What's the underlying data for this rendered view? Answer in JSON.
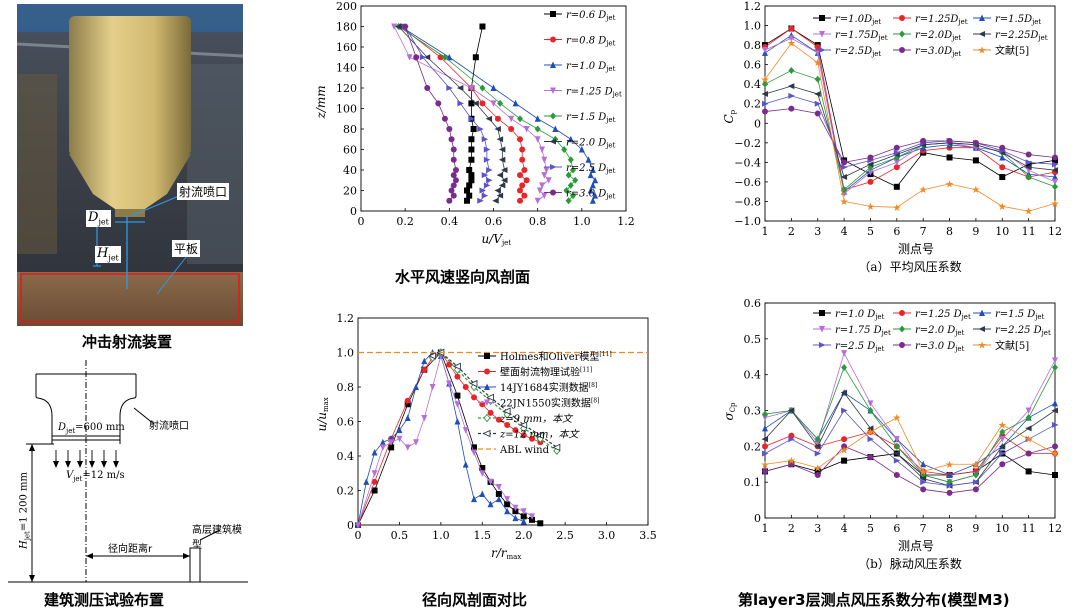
{
  "captions": {
    "photo": "冲击射流装置",
    "schematic": "建筑测压试验布置",
    "profile": "水平风速竖向风剖面",
    "radial": "径向风剖面对比",
    "pressure": "第layer3层测点风压系数分布(模型M3)"
  },
  "photo": {
    "labels": {
      "nozzle": "射流喷口",
      "djet": "D",
      "djet_sub": "jet",
      "hjet": "H",
      "hjet_sub": "jet",
      "plate": "平板"
    }
  },
  "schematic": {
    "djet": "D",
    "djet_sub": "jet",
    "djet_val": "=600 mm",
    "nozzle": "射流喷口",
    "vjet": "V",
    "vjet_sub": "jet",
    "vjet_val": "=12 m/s",
    "hjet": "H",
    "hjet_sub": "jet",
    "hjet_val": "=1 200 mm",
    "radial": "径向距离r",
    "model": "高层建筑模型"
  },
  "colors": {
    "c1": "#000000",
    "c2": "#e8262a",
    "c3": "#1f4fb8",
    "c4": "#b66fd8",
    "c5": "#2a9a3c",
    "c6": "#303848",
    "c7": "#5c54c8",
    "c8": "#7a2c8c",
    "c9": "#f08a24"
  },
  "chart_data": [
    {
      "id": "profile",
      "type": "line",
      "xlabel": "u/V",
      "xlabel_sub": "jet",
      "ylabel": "z/mm",
      "xlim": [
        0,
        1.2
      ],
      "ylim": [
        0,
        200
      ],
      "xticks": [
        "0",
        "0.2",
        "0.4",
        "0.6",
        "0.8",
        "1.0",
        "1.2"
      ],
      "yticks": [
        "0",
        "20",
        "40",
        "60",
        "80",
        "100",
        "120",
        "140",
        "160",
        "180",
        "200"
      ],
      "legend": "top-right",
      "z": [
        180,
        150,
        120,
        105,
        90,
        80,
        70,
        60,
        50,
        40,
        35,
        30,
        25,
        20,
        15,
        10
      ],
      "series": [
        {
          "name": "r=0.6 D",
          "sub": "jet",
          "color": "c1",
          "marker": "square",
          "values": [
            0.55,
            0.52,
            0.5,
            0.5,
            0.5,
            0.51,
            0.5,
            0.5,
            0.5,
            0.49,
            0.5,
            0.5,
            0.49,
            0.48,
            0.49,
            0.48
          ]
        },
        {
          "name": "r=0.8 D",
          "sub": "jet",
          "color": "c2",
          "marker": "circle",
          "values": [
            0.18,
            0.36,
            0.5,
            0.55,
            0.62,
            0.68,
            0.72,
            0.73,
            0.73,
            0.74,
            0.72,
            0.75,
            0.73,
            0.72,
            0.74,
            0.72
          ]
        },
        {
          "name": "r=1.0 D",
          "sub": "jet",
          "color": "c3",
          "marker": "triangle",
          "values": [
            0.18,
            0.4,
            0.6,
            0.7,
            0.8,
            0.88,
            0.95,
            1.0,
            1.03,
            1.05,
            1.04,
            1.06,
            1.05,
            1.04,
            1.06,
            1.05
          ]
        },
        {
          "name": "r=1.25 D",
          "sub": "jet",
          "color": "c4",
          "marker": "triangle-down",
          "values": [
            0.15,
            0.22,
            0.5,
            0.6,
            0.68,
            0.75,
            0.8,
            0.82,
            0.83,
            0.84,
            0.83,
            0.85,
            0.82,
            0.81,
            0.83,
            0.8
          ]
        },
        {
          "name": "r=1.5 D",
          "sub": "jet",
          "color": "c5",
          "marker": "diamond",
          "values": [
            0.17,
            0.38,
            0.55,
            0.63,
            0.72,
            0.8,
            0.88,
            0.92,
            0.95,
            0.96,
            0.94,
            0.97,
            0.95,
            0.93,
            0.96,
            0.94
          ]
        },
        {
          "name": "r=2.0 D",
          "sub": "jet",
          "color": "c6",
          "marker": "triangle-left",
          "values": [
            0.17,
            0.3,
            0.45,
            0.52,
            0.58,
            0.62,
            0.63,
            0.64,
            0.64,
            0.65,
            0.63,
            0.65,
            0.64,
            0.62,
            0.63,
            0.61
          ]
        },
        {
          "name": "r=2.5 D",
          "sub": "jet",
          "color": "c7",
          "marker": "triangle-right",
          "values": [
            0.2,
            0.28,
            0.4,
            0.45,
            0.5,
            0.54,
            0.56,
            0.57,
            0.57,
            0.58,
            0.56,
            0.58,
            0.57,
            0.55,
            0.56,
            0.54
          ]
        },
        {
          "name": "r=3.0 D",
          "sub": "jet",
          "color": "c8",
          "marker": "circle",
          "values": [
            0.2,
            0.25,
            0.3,
            0.35,
            0.38,
            0.4,
            0.41,
            0.42,
            0.42,
            0.43,
            0.42,
            0.43,
            0.42,
            0.41,
            0.42,
            0.4
          ]
        }
      ]
    },
    {
      "id": "radial",
      "type": "line",
      "xlabel": "r/r",
      "xlabel_sub": "max",
      "ylabel": "u/u",
      "ylabel_sub": "max",
      "xlim": [
        0,
        3.5
      ],
      "ylim": [
        0,
        1.2
      ],
      "xticks": [
        "0",
        "0.5",
        "1.0",
        "1.5",
        "2.0",
        "2.5",
        "3.0",
        "3.5"
      ],
      "yticks": [
        "0",
        "0.2",
        "0.4",
        "0.6",
        "0.8",
        "1.0",
        "1.2"
      ],
      "legend": "top-right",
      "series": [
        {
          "name": "Holmes和Oliver模型",
          "ref": "[11]",
          "color": "c1",
          "marker": "square",
          "x": [
            0,
            0.2,
            0.4,
            0.6,
            0.8,
            1.0,
            1.2,
            1.4,
            1.5,
            1.6,
            1.7,
            1.8,
            1.9,
            2.0,
            2.1,
            2.2
          ],
          "y": [
            0,
            0.2,
            0.45,
            0.7,
            0.9,
            1.0,
            0.75,
            0.45,
            0.33,
            0.25,
            0.18,
            0.12,
            0.08,
            0.05,
            0.03,
            0.01
          ]
        },
        {
          "name": "壁面射流物理试验",
          "ref": "[11]",
          "color": "c2",
          "marker": "circle",
          "x": [
            0,
            0.2,
            0.4,
            0.6,
            0.8,
            0.9,
            1.0,
            1.1,
            1.2,
            1.3,
            1.4,
            1.5,
            1.6,
            1.7,
            1.8,
            1.9,
            2.0,
            2.1,
            2.2
          ],
          "y": [
            0,
            0.25,
            0.5,
            0.72,
            0.9,
            0.97,
            1.0,
            0.93,
            0.86,
            0.8,
            0.74,
            0.7,
            0.65,
            0.61,
            0.58,
            0.55,
            0.52,
            0.5,
            0.48
          ]
        },
        {
          "name": "14JY1684实测数据",
          "ref": "[8]",
          "color": "c3",
          "marker": "triangle",
          "x": [
            0,
            0.1,
            0.2,
            0.3,
            0.4,
            0.5,
            0.6,
            0.7,
            0.8,
            0.9,
            1.0,
            1.1,
            1.2,
            1.3,
            1.4,
            1.5,
            1.6,
            1.7,
            1.8,
            1.9,
            2.0
          ],
          "y": [
            0,
            0.25,
            0.42,
            0.48,
            0.5,
            0.55,
            0.62,
            0.8,
            0.95,
            1.0,
            0.98,
            0.82,
            0.6,
            0.35,
            0.15,
            0.18,
            0.12,
            0.15,
            0.08,
            0.04,
            0.02
          ]
        },
        {
          "name": "22JN1550实测数据",
          "ref": "[8]",
          "color": "c4",
          "marker": "triangle-down",
          "x": [
            0,
            0.2,
            0.3,
            0.4,
            0.5,
            0.6,
            0.7,
            0.8,
            0.9,
            1.0,
            1.1,
            1.2,
            1.3,
            1.4,
            1.5,
            1.6,
            1.7,
            1.8,
            1.9,
            2.0,
            2.1
          ],
          "y": [
            0,
            0.3,
            0.45,
            0.48,
            0.5,
            0.45,
            0.48,
            0.62,
            0.8,
            0.98,
            0.82,
            0.7,
            0.55,
            0.42,
            0.3,
            0.25,
            0.22,
            0.15,
            0.1,
            0.08,
            0.05
          ]
        },
        {
          "name": "z=9 mm，本文",
          "color": "c5",
          "marker": "diamond-open",
          "x": [
            0.9,
            1.0,
            1.2,
            1.4,
            1.6,
            1.8,
            2.0,
            2.2,
            2.4
          ],
          "y": [
            0.97,
            1.0,
            0.9,
            0.8,
            0.72,
            0.64,
            0.56,
            0.5,
            0.43
          ],
          "dashed": true
        },
        {
          "name": "z=12 mm，本文",
          "color": "c6",
          "marker": "triangle-left-open",
          "x": [
            0.9,
            1.0,
            1.2,
            1.4,
            1.6,
            1.8,
            2.0,
            2.2,
            2.4
          ],
          "y": [
            0.98,
            1.0,
            0.92,
            0.82,
            0.74,
            0.66,
            0.58,
            0.52,
            0.45
          ],
          "dashed": true
        },
        {
          "name": "ABL wind",
          "color": "c9",
          "marker": "none",
          "x": [
            0,
            3.5
          ],
          "y": [
            1.0,
            1.0
          ],
          "dashed": true
        }
      ]
    },
    {
      "id": "pressure_mean",
      "type": "line",
      "subtitle": "（a）平均风压系数",
      "xlabel": "测点号",
      "ylabel": "C",
      "ylabel_sub": "p",
      "xlim": [
        1,
        12
      ],
      "ylim": [
        -1.0,
        1.2
      ],
      "xticks": [
        "1",
        "2",
        "3",
        "4",
        "5",
        "6",
        "7",
        "8",
        "9",
        "10",
        "11",
        "12"
      ],
      "yticks": [
        "−1.0",
        "−0.8",
        "−0.6",
        "−0.4",
        "−0.2",
        "0",
        "0.2",
        "0.4",
        "0.6",
        "0.8",
        "1.0",
        "1.2"
      ],
      "legend": "top-right",
      "series": [
        {
          "name": "r=1.0D",
          "sub": "jet",
          "color": "c1",
          "marker": "square",
          "values": [
            0.8,
            0.97,
            0.8,
            -0.38,
            -0.52,
            -0.65,
            -0.3,
            -0.35,
            -0.38,
            -0.55,
            -0.42,
            -0.38
          ]
        },
        {
          "name": "r=1.25D",
          "sub": "jet",
          "color": "c2",
          "marker": "circle",
          "values": [
            0.78,
            0.97,
            0.78,
            -0.68,
            -0.6,
            -0.45,
            -0.28,
            -0.25,
            -0.25,
            -0.45,
            -0.55,
            -0.5
          ]
        },
        {
          "name": "r=1.5D",
          "sub": "jet",
          "color": "c3",
          "marker": "triangle",
          "values": [
            0.72,
            0.9,
            0.72,
            -0.7,
            -0.48,
            -0.35,
            -0.25,
            -0.22,
            -0.25,
            -0.35,
            -0.52,
            -0.55
          ]
        },
        {
          "name": "r=1.75D",
          "sub": "jet",
          "color": "c4",
          "marker": "triangle-down",
          "values": [
            0.75,
            0.87,
            0.72,
            -0.72,
            -0.5,
            -0.4,
            -0.22,
            -0.2,
            -0.25,
            -0.28,
            -0.48,
            -0.6
          ]
        },
        {
          "name": "r=2.0D",
          "sub": "jet",
          "color": "c5",
          "marker": "diamond",
          "values": [
            0.4,
            0.54,
            0.45,
            -0.68,
            -0.45,
            -0.35,
            -0.22,
            -0.2,
            -0.22,
            -0.3,
            -0.55,
            -0.65
          ]
        },
        {
          "name": "r=2.25D",
          "sub": "jet",
          "color": "c6",
          "marker": "triangle-left",
          "values": [
            0.3,
            0.38,
            0.3,
            -0.55,
            -0.42,
            -0.32,
            -0.22,
            -0.2,
            -0.22,
            -0.3,
            -0.45,
            -0.48
          ]
        },
        {
          "name": "r=2.5D",
          "sub": "jet",
          "color": "c7",
          "marker": "triangle-right",
          "values": [
            0.2,
            0.28,
            0.2,
            -0.45,
            -0.38,
            -0.3,
            -0.2,
            -0.18,
            -0.2,
            -0.28,
            -0.4,
            -0.42
          ]
        },
        {
          "name": "r=3.0D",
          "sub": "jet",
          "color": "c8",
          "marker": "circle",
          "values": [
            0.12,
            0.15,
            0.1,
            -0.4,
            -0.35,
            -0.25,
            -0.18,
            -0.18,
            -0.2,
            -0.25,
            -0.32,
            -0.35
          ]
        },
        {
          "name": "文献[5]",
          "color": "c9",
          "marker": "star",
          "values": [
            0.45,
            0.82,
            0.62,
            -0.8,
            -0.85,
            -0.86,
            -0.68,
            -0.62,
            -0.68,
            -0.85,
            -0.9,
            -0.82
          ]
        }
      ]
    },
    {
      "id": "pressure_rms",
      "type": "line",
      "subtitle": "（b）脉动风压系数",
      "xlabel": "测点号",
      "ylabel": "σ",
      "ylabel_sub": "Cp",
      "xlim": [
        1,
        12
      ],
      "ylim": [
        0,
        0.6
      ],
      "xticks": [
        "1",
        "2",
        "3",
        "4",
        "5",
        "6",
        "7",
        "8",
        "9",
        "10",
        "11",
        "12"
      ],
      "yticks": [
        "0",
        "0.1",
        "0.2",
        "0.3",
        "0.4",
        "0.5",
        "0.6"
      ],
      "legend": "top-right",
      "series": [
        {
          "name": "r=1.0 D",
          "sub": "jet",
          "color": "c1",
          "marker": "square",
          "values": [
            0.13,
            0.15,
            0.13,
            0.16,
            0.17,
            0.18,
            0.12,
            0.12,
            0.13,
            0.18,
            0.13,
            0.12
          ]
        },
        {
          "name": "r=1.25 D",
          "sub": "jet",
          "color": "c2",
          "marker": "circle",
          "values": [
            0.2,
            0.23,
            0.2,
            0.22,
            0.24,
            0.2,
            0.13,
            0.12,
            0.13,
            0.23,
            0.18,
            0.18
          ]
        },
        {
          "name": "r=1.5 D",
          "sub": "jet",
          "color": "c3",
          "marker": "triangle",
          "values": [
            0.25,
            0.3,
            0.22,
            0.35,
            0.3,
            0.22,
            0.15,
            0.12,
            0.15,
            0.2,
            0.28,
            0.32
          ]
        },
        {
          "name": "r=1.75 D",
          "sub": "jet",
          "color": "c4",
          "marker": "triangle-down",
          "values": [
            0.28,
            0.3,
            0.21,
            0.46,
            0.32,
            0.22,
            0.12,
            0.1,
            0.12,
            0.22,
            0.3,
            0.44
          ]
        },
        {
          "name": "r=2.0 D",
          "sub": "jet",
          "color": "c5",
          "marker": "diamond",
          "values": [
            0.29,
            0.3,
            0.22,
            0.42,
            0.3,
            0.2,
            0.12,
            0.1,
            0.12,
            0.24,
            0.28,
            0.42
          ]
        },
        {
          "name": "r=2.25 D",
          "sub": "jet",
          "color": "c6",
          "marker": "triangle-left",
          "values": [
            0.22,
            0.3,
            0.2,
            0.35,
            0.25,
            0.18,
            0.11,
            0.09,
            0.1,
            0.2,
            0.25,
            0.3
          ]
        },
        {
          "name": "r=2.5 D",
          "sub": "jet",
          "color": "c7",
          "marker": "triangle-right",
          "values": [
            0.18,
            0.22,
            0.18,
            0.3,
            0.22,
            0.16,
            0.1,
            0.09,
            0.1,
            0.18,
            0.22,
            0.26
          ]
        },
        {
          "name": "r=3.0 D",
          "sub": "jet",
          "color": "c8",
          "marker": "circle",
          "values": [
            0.13,
            0.15,
            0.12,
            0.2,
            0.17,
            0.12,
            0.08,
            0.07,
            0.08,
            0.15,
            0.18,
            0.2
          ]
        },
        {
          "name": "文献[5]",
          "color": "c9",
          "marker": "star",
          "values": [
            0.15,
            0.16,
            0.14,
            0.19,
            0.24,
            0.28,
            0.13,
            0.15,
            0.15,
            0.26,
            0.22,
            0.18
          ]
        }
      ]
    }
  ]
}
